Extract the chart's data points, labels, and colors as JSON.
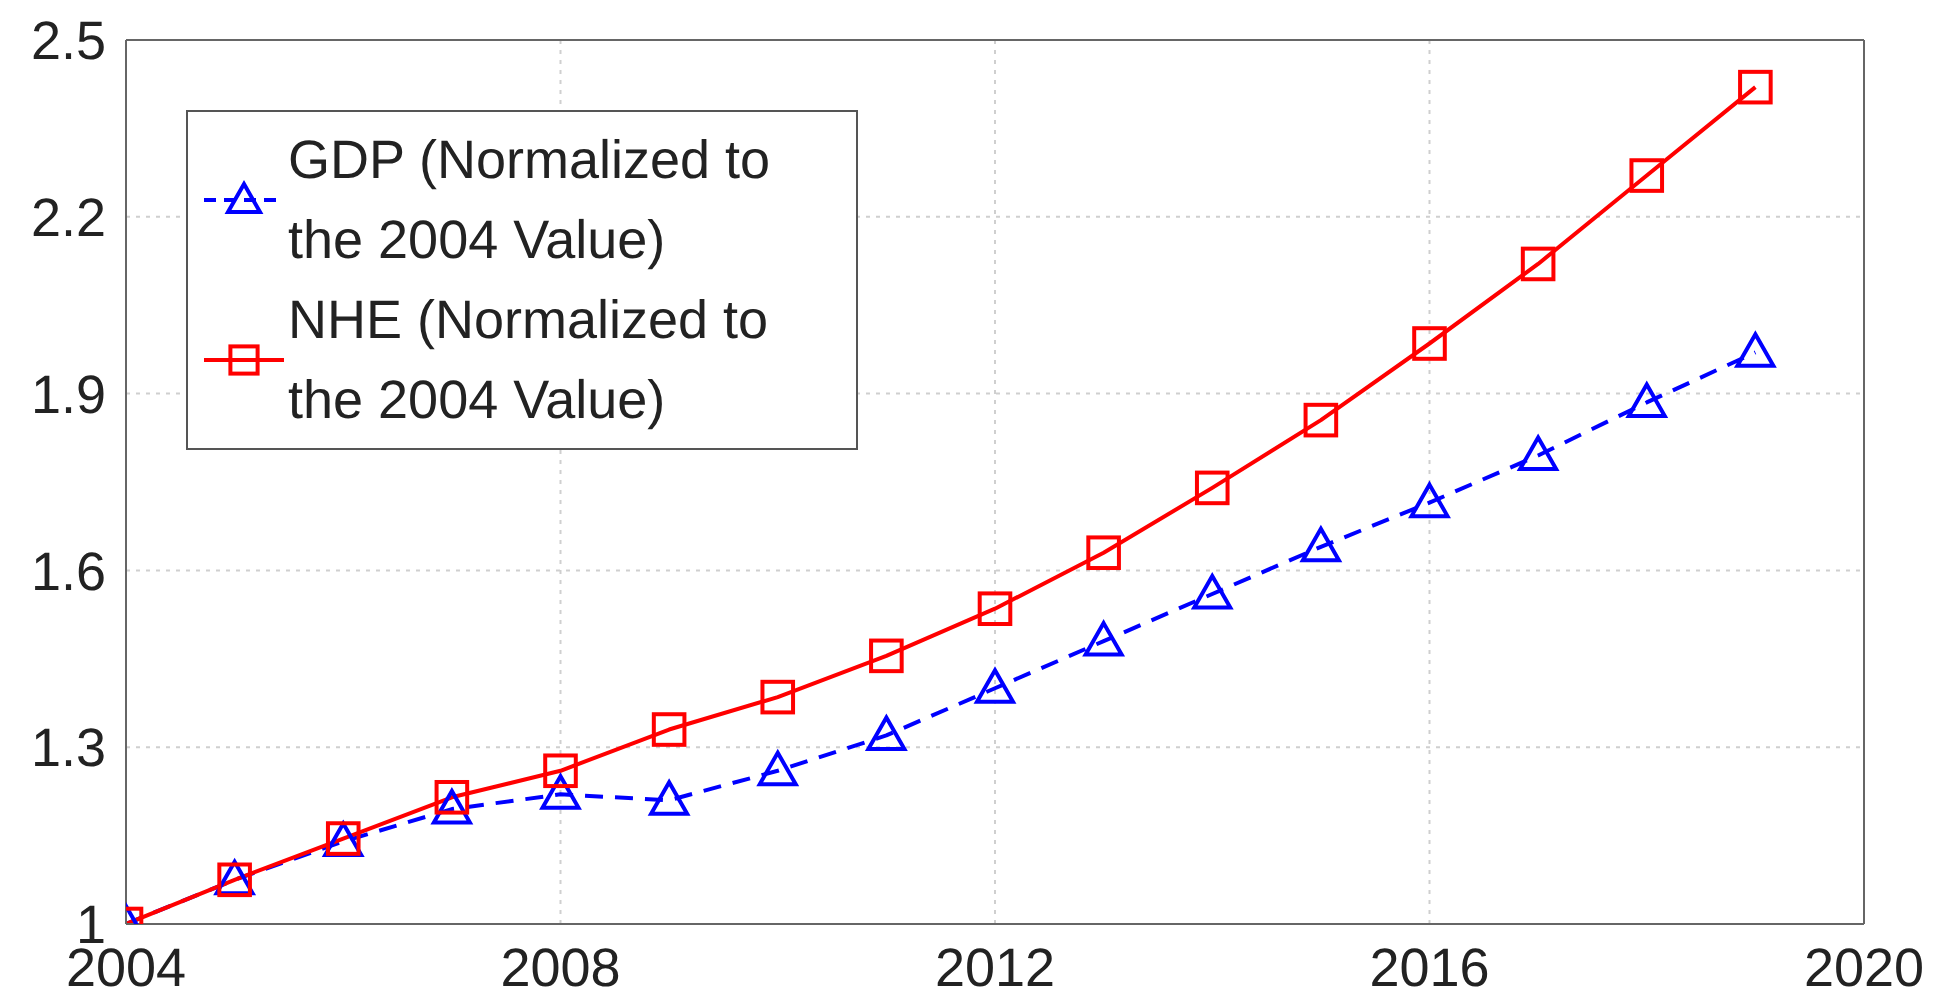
{
  "chart_data": {
    "type": "line",
    "x": [
      2004,
      2005,
      2006,
      2007,
      2008,
      2009,
      2010,
      2011,
      2012,
      2013,
      2014,
      2015,
      2016,
      2017,
      2018,
      2019
    ],
    "xlim": [
      2004,
      2020
    ],
    "xticks": [
      2004,
      2008,
      2012,
      2016,
      2020
    ],
    "ylim": [
      1,
      2.5
    ],
    "yticks": [
      1,
      1.3,
      1.6,
      1.9,
      2.2,
      2.5
    ],
    "grid": true,
    "legend": "top left",
    "series": [
      {
        "name": "GDP (Normalized to the 2004 Value)",
        "color": "#0000ff",
        "marker": "triangle",
        "line_style": "dashed",
        "values": [
          1.0,
          1.075,
          1.14,
          1.195,
          1.22,
          1.21,
          1.26,
          1.32,
          1.4,
          1.48,
          1.56,
          1.64,
          1.715,
          1.795,
          1.885,
          1.97
        ]
      },
      {
        "name": "NHE (Normalized to the 2004 Value)",
        "color": "#ff0000",
        "marker": "square",
        "line_style": "solid",
        "values": [
          1.0,
          1.075,
          1.145,
          1.215,
          1.26,
          1.33,
          1.385,
          1.455,
          1.535,
          1.63,
          1.74,
          1.855,
          1.985,
          2.12,
          2.27,
          2.42
        ]
      }
    ]
  }
}
